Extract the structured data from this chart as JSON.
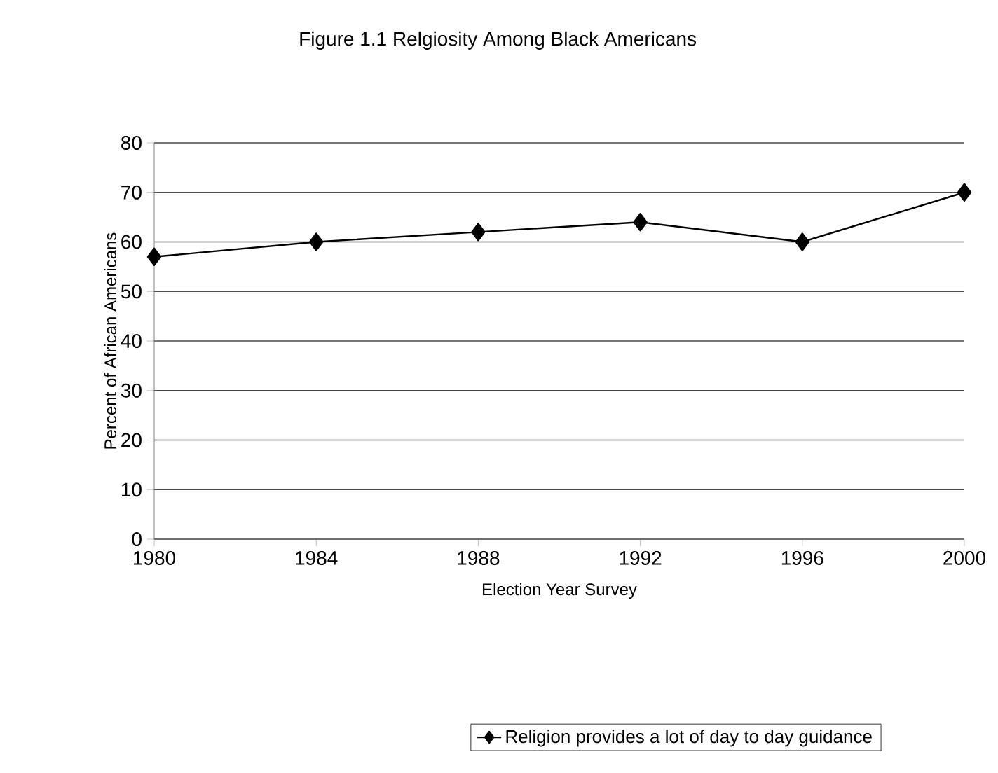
{
  "chart_data": {
    "type": "line",
    "title": "Figure 1.1 Relgiosity Among Black Americans",
    "xlabel": "Election Year Survey",
    "ylabel": "Percent of African Americans",
    "x": [
      1980,
      1984,
      1988,
      1992,
      1996,
      2000
    ],
    "series": [
      {
        "name": "Religion provides a lot of day to day guidance",
        "color": "#000000",
        "values": [
          57,
          60,
          62,
          64,
          60,
          70
        ]
      }
    ],
    "xlim": [
      1980,
      2000
    ],
    "xticks": [
      1980,
      1984,
      1988,
      1992,
      1996,
      2000
    ],
    "ylim": [
      0,
      80
    ],
    "yticks": [
      0,
      10,
      20,
      30,
      40,
      50,
      60,
      70,
      80
    ],
    "grid": "y",
    "legend": "bottom",
    "marker": "diamond",
    "line_style": "solid"
  }
}
